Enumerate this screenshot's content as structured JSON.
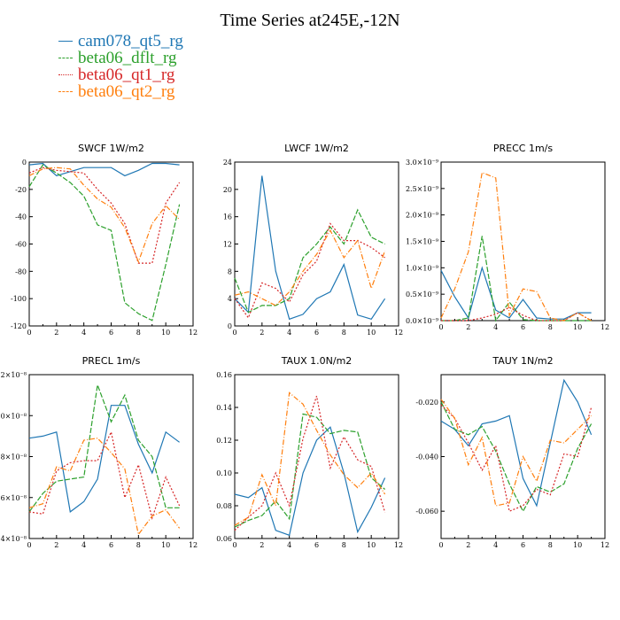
{
  "title": "Time Series at245E,-12N",
  "legend": [
    {
      "label": "cam078_qt5_rg",
      "color": "#1f77b4",
      "style": "solid"
    },
    {
      "label": "beta06_dflt_rg",
      "color": "#2ca02c",
      "style": "dashed"
    },
    {
      "label": "beta06_qt1_rg",
      "color": "#d62728",
      "style": "dotted"
    },
    {
      "label": "beta06_qt2_rg",
      "color": "#ff7f0e",
      "style": "dashdot"
    }
  ],
  "chart_data": [
    {
      "type": "line",
      "title": "SWCF   1W/m2",
      "x": [
        0,
        1,
        2,
        3,
        4,
        5,
        6,
        7,
        8,
        9,
        10,
        11
      ],
      "xlim": [
        0,
        12
      ],
      "xticks": [
        "0",
        "2",
        "4",
        "6",
        "8",
        "10",
        "12"
      ],
      "ylim": [
        -120,
        0
      ],
      "yticks": [
        "-120",
        "-100",
        "-80",
        "-60",
        "-40",
        "-20",
        "0"
      ],
      "series": [
        {
          "name": "cam078_qt5_rg",
          "values": [
            -2,
            -1,
            -10,
            -7,
            -4,
            -4,
            -4,
            -10,
            -6,
            -1,
            -1,
            -2
          ]
        },
        {
          "name": "beta06_dflt_rg",
          "values": [
            -18,
            -2,
            -8,
            -15,
            -25,
            -46,
            -50,
            -103,
            -111,
            -116,
            -75,
            -31
          ]
        },
        {
          "name": "beta06_qt1_rg",
          "values": [
            -8,
            -4,
            -6,
            -7,
            -8,
            -20,
            -30,
            -45,
            -74,
            -74,
            -30,
            -15
          ]
        },
        {
          "name": "beta06_qt2_rg",
          "values": [
            -10,
            -5,
            -4,
            -5,
            -17,
            -27,
            -33,
            -48,
            -73,
            -45,
            -32,
            -42
          ]
        }
      ]
    },
    {
      "type": "line",
      "title": "LWCF   1W/m2",
      "x": [
        0,
        1,
        2,
        3,
        4,
        5,
        6,
        7,
        8,
        9,
        10,
        11
      ],
      "xlim": [
        0,
        12
      ],
      "xticks": [
        "0",
        "2",
        "4",
        "6",
        "8",
        "10",
        "12"
      ],
      "ylim": [
        0,
        24
      ],
      "yticks": [
        "0",
        "4",
        "8",
        "12",
        "16",
        "20",
        "24"
      ],
      "series": [
        {
          "name": "cam078_qt5_rg",
          "values": [
            4,
            2,
            22,
            8,
            1,
            1.7,
            4,
            5,
            9,
            1.6,
            1,
            4
          ]
        },
        {
          "name": "beta06_dflt_rg",
          "values": [
            7,
            2,
            3,
            3,
            4,
            10,
            12,
            14.5,
            12,
            17,
            13,
            12
          ]
        },
        {
          "name": "beta06_qt1_rg",
          "values": [
            4,
            1.2,
            6.3,
            5.5,
            3.5,
            7.5,
            9.5,
            15,
            12.5,
            12.5,
            11.5,
            10
          ]
        },
        {
          "name": "beta06_qt2_rg",
          "values": [
            4.5,
            5,
            4,
            3,
            5,
            8,
            10.5,
            14,
            10,
            12.5,
            5.5,
            11
          ]
        }
      ]
    },
    {
      "type": "line",
      "title": "PRECC   1m/s",
      "x": [
        0,
        1,
        2,
        3,
        4,
        5,
        6,
        7,
        8,
        9,
        10,
        11
      ],
      "xlim": [
        0,
        12
      ],
      "xticks": [
        "0",
        "2",
        "4",
        "6",
        "8",
        "10",
        "12"
      ],
      "ylim": [
        0,
        3.0
      ],
      "yticks": [
        "0.0×10⁻⁹",
        "0.5×10⁻⁹",
        "1.0×10⁻⁹",
        "1.5×10⁻⁹",
        "2.0×10⁻⁹",
        "2.5×10⁻⁹",
        "3.0×10⁻⁹"
      ],
      "series": [
        {
          "name": "cam078_qt5_rg",
          "values": [
            0.95,
            0.45,
            0.05,
            1.0,
            0.2,
            0.05,
            0.4,
            0.05,
            0.03,
            0.03,
            0.15,
            0.15
          ]
        },
        {
          "name": "beta06_dflt_rg",
          "values": [
            0,
            0,
            0.05,
            1.6,
            0,
            0.35,
            0.02,
            0,
            0,
            0,
            0,
            0
          ]
        },
        {
          "name": "beta06_qt1_rg",
          "values": [
            0,
            0,
            0,
            0.05,
            0.12,
            0.25,
            0.1,
            0,
            0,
            0,
            0.15,
            0
          ]
        },
        {
          "name": "beta06_qt2_rg",
          "values": [
            0.05,
            0.6,
            1.3,
            2.8,
            2.7,
            0.1,
            0.6,
            0.55,
            0.05,
            0,
            0.15,
            0
          ]
        }
      ]
    },
    {
      "type": "line",
      "title": "PRECL   1m/s",
      "x": [
        0,
        1,
        2,
        3,
        4,
        5,
        6,
        7,
        8,
        9,
        10,
        11
      ],
      "xlim": [
        0,
        12
      ],
      "xticks": [
        "0",
        "2",
        "4",
        "6",
        "8",
        "10",
        "12"
      ],
      "ylim": [
        0.4,
        1.2
      ],
      "yticks": [
        "0.4×10⁻⁸",
        "0.6×10⁻⁸",
        "0.8×10⁻⁸",
        "1.0×10⁻⁸",
        "1.2×10⁻⁸"
      ],
      "series": [
        {
          "name": "cam078_qt5_rg",
          "values": [
            0.89,
            0.9,
            0.92,
            0.53,
            0.58,
            0.69,
            1.05,
            1.05,
            0.86,
            0.72,
            0.92,
            0.87
          ]
        },
        {
          "name": "beta06_dflt_rg",
          "values": [
            0.53,
            0.62,
            0.68,
            0.69,
            0.7,
            1.15,
            0.97,
            1.1,
            0.88,
            0.8,
            0.55,
            0.55
          ]
        },
        {
          "name": "beta06_qt1_rg",
          "values": [
            0.53,
            0.52,
            0.73,
            0.77,
            0.78,
            0.78,
            0.92,
            0.6,
            0.76,
            0.5,
            0.7,
            0.56
          ]
        },
        {
          "name": "beta06_qt2_rg",
          "values": [
            0.55,
            0.57,
            0.75,
            0.73,
            0.88,
            0.89,
            0.82,
            0.74,
            0.42,
            0.51,
            0.54,
            0.45
          ]
        }
      ]
    },
    {
      "type": "line",
      "title": "TAUX   1.0N/m2",
      "x": [
        0,
        1,
        2,
        3,
        4,
        5,
        6,
        7,
        8,
        9,
        10,
        11
      ],
      "xlim": [
        0,
        12
      ],
      "xticks": [
        "0",
        "2",
        "4",
        "6",
        "8",
        "10",
        "12"
      ],
      "ylim": [
        0.06,
        0.16
      ],
      "yticks": [
        "0.06",
        "0.08",
        "0.10",
        "0.12",
        "0.14",
        "0.16"
      ],
      "series": [
        {
          "name": "cam078_qt5_rg",
          "values": [
            0.087,
            0.085,
            0.091,
            0.065,
            0.062,
            0.1,
            0.12,
            0.128,
            0.1,
            0.064,
            0.079,
            0.097
          ]
        },
        {
          "name": "beta06_dflt_rg",
          "values": [
            0.067,
            0.071,
            0.074,
            0.083,
            0.072,
            0.136,
            0.134,
            0.124,
            0.126,
            0.125,
            0.097,
            0.09
          ]
        },
        {
          "name": "beta06_qt1_rg",
          "values": [
            0.065,
            0.073,
            0.08,
            0.1,
            0.08,
            0.121,
            0.147,
            0.103,
            0.122,
            0.108,
            0.104,
            0.076
          ]
        },
        {
          "name": "beta06_qt2_rg",
          "values": [
            0.068,
            0.073,
            0.099,
            0.08,
            0.149,
            0.142,
            0.126,
            0.111,
            0.099,
            0.091,
            0.1,
            0.087
          ]
        }
      ]
    },
    {
      "type": "line",
      "title": "TAUY   1N/m2",
      "x": [
        0,
        1,
        2,
        3,
        4,
        5,
        6,
        7,
        8,
        9,
        10,
        11
      ],
      "xlim": [
        0,
        12
      ],
      "xticks": [
        "0",
        "2",
        "4",
        "6",
        "8",
        "10",
        "12"
      ],
      "ylim": [
        -0.07,
        -0.01
      ],
      "yticks": [
        "-0.060",
        "-0.040",
        "-0.020"
      ],
      "ytick_values": [
        -0.06,
        -0.04,
        -0.02
      ],
      "series": [
        {
          "name": "cam078_qt5_rg",
          "values": [
            -0.027,
            -0.03,
            -0.036,
            -0.028,
            -0.027,
            -0.025,
            -0.048,
            -0.058,
            -0.035,
            -0.012,
            -0.02,
            -0.032
          ]
        },
        {
          "name": "beta06_dflt_rg",
          "values": [
            -0.02,
            -0.03,
            -0.032,
            -0.029,
            -0.038,
            -0.05,
            -0.06,
            -0.051,
            -0.053,
            -0.05,
            -0.037,
            -0.028
          ]
        },
        {
          "name": "beta06_qt1_rg",
          "values": [
            -0.021,
            -0.026,
            -0.035,
            -0.045,
            -0.036,
            -0.06,
            -0.058,
            -0.052,
            -0.054,
            -0.039,
            -0.04,
            -0.022
          ]
        },
        {
          "name": "beta06_qt2_rg",
          "values": [
            -0.019,
            -0.026,
            -0.043,
            -0.033,
            -0.058,
            -0.057,
            -0.04,
            -0.049,
            -0.034,
            -0.035,
            -0.03,
            -0.025
          ]
        }
      ]
    }
  ]
}
